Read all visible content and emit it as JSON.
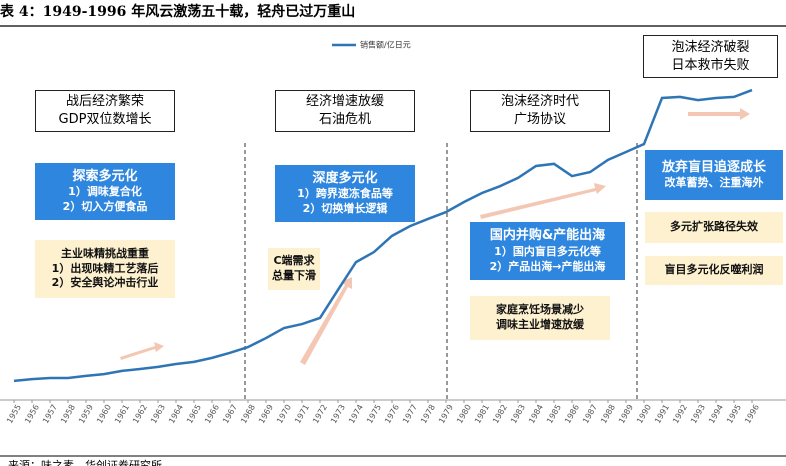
{
  "title": "表 4：1949-1996 年风云激荡五十载，轻舟已过万重山",
  "chart_data": {
    "type": "line",
    "x": [
      1955,
      1956,
      1957,
      1958,
      1959,
      1960,
      1961,
      1962,
      1963,
      1964,
      1965,
      1966,
      1967,
      1968,
      1969,
      1970,
      1971,
      1972,
      1973,
      1974,
      1975,
      1976,
      1977,
      1978,
      1979,
      1980,
      1981,
      1982,
      1983,
      1984,
      1985,
      1986,
      1987,
      1988,
      1989,
      1990,
      1991,
      1992,
      1993,
      1994,
      1995,
      1996
    ],
    "series": [
      {
        "name": "销售额/亿日元",
        "color": "#2e75b6",
        "values": [
          5.3,
          5.8,
          6.1,
          6.1,
          6.7,
          7.2,
          8.1,
          8.6,
          9.2,
          10,
          10.6,
          11.7,
          13.1,
          14.7,
          17.2,
          20,
          21.1,
          22.8,
          30.6,
          38.3,
          41.1,
          45.6,
          48.3,
          50.3,
          52.2,
          55,
          57.5,
          59.4,
          61.7,
          65,
          65.6,
          62.2,
          63.3,
          66.7,
          68.9,
          71.1,
          83.9,
          84.2,
          83.3,
          83.9,
          84.2,
          86.1
        ]
      }
    ],
    "xlim": [
      1955,
      1996
    ],
    "xticks": [
      1955,
      1956,
      1957,
      1958,
      1959,
      1960,
      1961,
      1962,
      1963,
      1964,
      1965,
      1966,
      1967,
      1968,
      1969,
      1970,
      1971,
      1972,
      1973,
      1974,
      1975,
      1976,
      1977,
      1978,
      1979,
      1980,
      1981,
      1982,
      1983,
      1984,
      1985,
      1986,
      1987,
      1988,
      1989,
      1990,
      1991,
      1992,
      1993,
      1994,
      1995,
      1996
    ],
    "ylim": [
      0,
      100
    ],
    "annotations": [
      {
        "lines": [
          "战后经济繁荣",
          "GDP双位数增长"
        ]
      },
      {
        "lines": [
          "经济增速放缓",
          "石油危机"
        ]
      },
      {
        "lines": [
          "泡沫经济时代",
          "广场协议"
        ]
      },
      {
        "lines": [
          "泡沫经济破裂",
          "日本救市失败"
        ]
      },
      {
        "lines": [
          "探索多元化",
          "1）调味复合化",
          "2）切入方便食品"
        ]
      },
      {
        "lines": [
          "深度多元化",
          "1）跨界速冻食品等",
          "2）切换增长逻辑"
        ]
      },
      {
        "lines": [
          "国内并购&产能出海",
          "1）国内盲目多元化等",
          "2）产品出海→产能出海"
        ]
      },
      {
        "lines": [
          "放弃盲目追逐成长",
          "改革蓄势、注重海外"
        ]
      },
      {
        "lines": [
          "主业味精挑战重重",
          "1）出现味精工艺落后",
          "2）安全舆论冲击行业"
        ]
      },
      {
        "lines": [
          "C端需求",
          "总量下滑"
        ]
      },
      {
        "lines": [
          "家庭烹饪场景减少",
          "调味主业增速放缓"
        ]
      },
      {
        "lines": [
          "多元扩张路径失效"
        ]
      },
      {
        "lines": [
          "盲目多元化反噬利润"
        ]
      }
    ]
  },
  "source": "来源：味之素，华创证券研究所"
}
